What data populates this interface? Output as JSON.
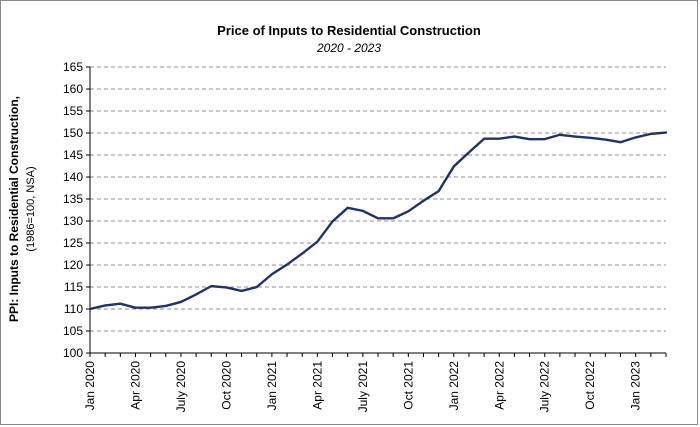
{
  "chart_data": {
    "type": "line",
    "title": "Price of Inputs to Residential Construction",
    "subtitle": "2020 - 2023",
    "ylabel": "PPI: Inputs to Residential Construction,",
    "ylabel_sub": "(1986=100, NSA)",
    "xlabel": "",
    "ylim": [
      100,
      165
    ],
    "ytick_step": 5,
    "grid": "horizontal-dashed",
    "line_color": "#1f3366",
    "x": [
      "Jan 2020",
      "Feb 2020",
      "Mar 2020",
      "Apr 2020",
      "May 2020",
      "Jun 2020",
      "Jul 2020",
      "Aug 2020",
      "Sep 2020",
      "Oct 2020",
      "Nov 2020",
      "Dec 2020",
      "Jan 2021",
      "Feb 2021",
      "Mar 2021",
      "Apr 2021",
      "May 2021",
      "Jun 2021",
      "Jul 2021",
      "Aug 2021",
      "Sep 2021",
      "Oct 2021",
      "Nov 2021",
      "Dec 2021",
      "Jan 2022",
      "Feb 2022",
      "Mar 2022",
      "Apr 2022",
      "May 2022",
      "Jun 2022",
      "Jul 2022",
      "Aug 2022",
      "Sep 2022",
      "Oct 2022",
      "Nov 2022",
      "Dec 2022",
      "Jan 2023",
      "Feb 2023",
      "Mar 2023"
    ],
    "xtick_labels": [
      "Jan 2020",
      "Apr 2020",
      "July 2020",
      "Oct 2020",
      "Jan 2021",
      "Apr 2021",
      "July 2021",
      "Oct 2021",
      "Jan 2022",
      "Apr 2022",
      "July 2022",
      "Oct 2022",
      "Jan 2023"
    ],
    "series": [
      {
        "name": "PPI: Inputs to Residential Construction",
        "values": [
          110.0,
          110.8,
          111.2,
          110.3,
          110.3,
          110.7,
          111.6,
          113.3,
          115.2,
          114.9,
          114.1,
          115.0,
          117.9,
          120.1,
          122.6,
          125.3,
          129.9,
          133.0,
          132.3,
          130.6,
          130.6,
          132.2,
          134.6,
          136.8,
          142.4,
          145.6,
          148.7,
          148.7,
          149.2,
          148.6,
          148.6,
          149.6,
          149.2,
          148.9,
          148.5,
          147.9,
          149.0,
          149.8,
          150.1
        ]
      }
    ]
  }
}
